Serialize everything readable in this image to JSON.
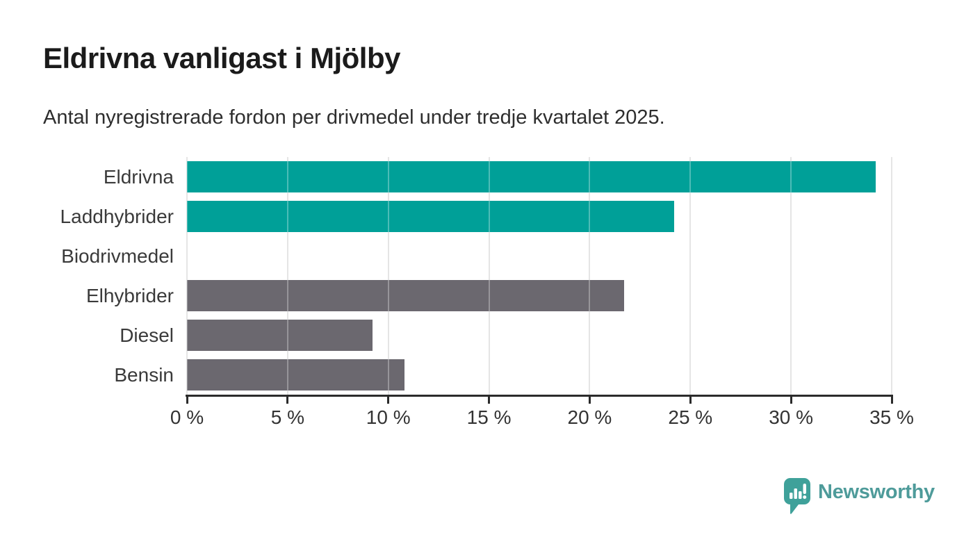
{
  "header": {
    "title": "Eldrivna vanligast i Mjölby",
    "subtitle": "Antal nyregistrerade fordon per drivmedel under tredje kvartalet 2025."
  },
  "chart_data": {
    "type": "bar",
    "orientation": "horizontal",
    "title": "Eldrivna vanligast i Mjölby",
    "subtitle": "Antal nyregistrerade fordon per drivmedel under tredje kvartalet 2025.",
    "categories": [
      "Eldrivna",
      "Laddhybrider",
      "Biodrivmedel",
      "Elhybrider",
      "Diesel",
      "Bensin"
    ],
    "values": [
      34.2,
      24.2,
      0,
      21.7,
      9.2,
      10.8
    ],
    "unit": "%",
    "xlabel": "",
    "ylabel": "",
    "xlim": [
      0,
      35
    ],
    "x_ticks": [
      0,
      5,
      10,
      15,
      20,
      25,
      30,
      35
    ],
    "x_tick_labels": [
      "0 %",
      "5 %",
      "10 %",
      "15 %",
      "20 %",
      "25 %",
      "30 %",
      "35 %"
    ],
    "grid": true,
    "legend": false,
    "bar_colors": [
      "#00a098",
      "#00a098",
      "#6b686f",
      "#6b686f",
      "#6b686f",
      "#6b686f"
    ],
    "highlight_color": "#00a098",
    "default_color": "#6b686f"
  },
  "style": {
    "gridline_color": "#dadada",
    "axis_color": "#2b2b2b",
    "label_color": "#3a3a3a",
    "title_color": "#1b1b1b"
  },
  "footer": {
    "brand": "Newsworthy",
    "brand_color": "#4e9b9a",
    "logo_icon": "newsworthy-speech-bubble-barchart-icon"
  }
}
